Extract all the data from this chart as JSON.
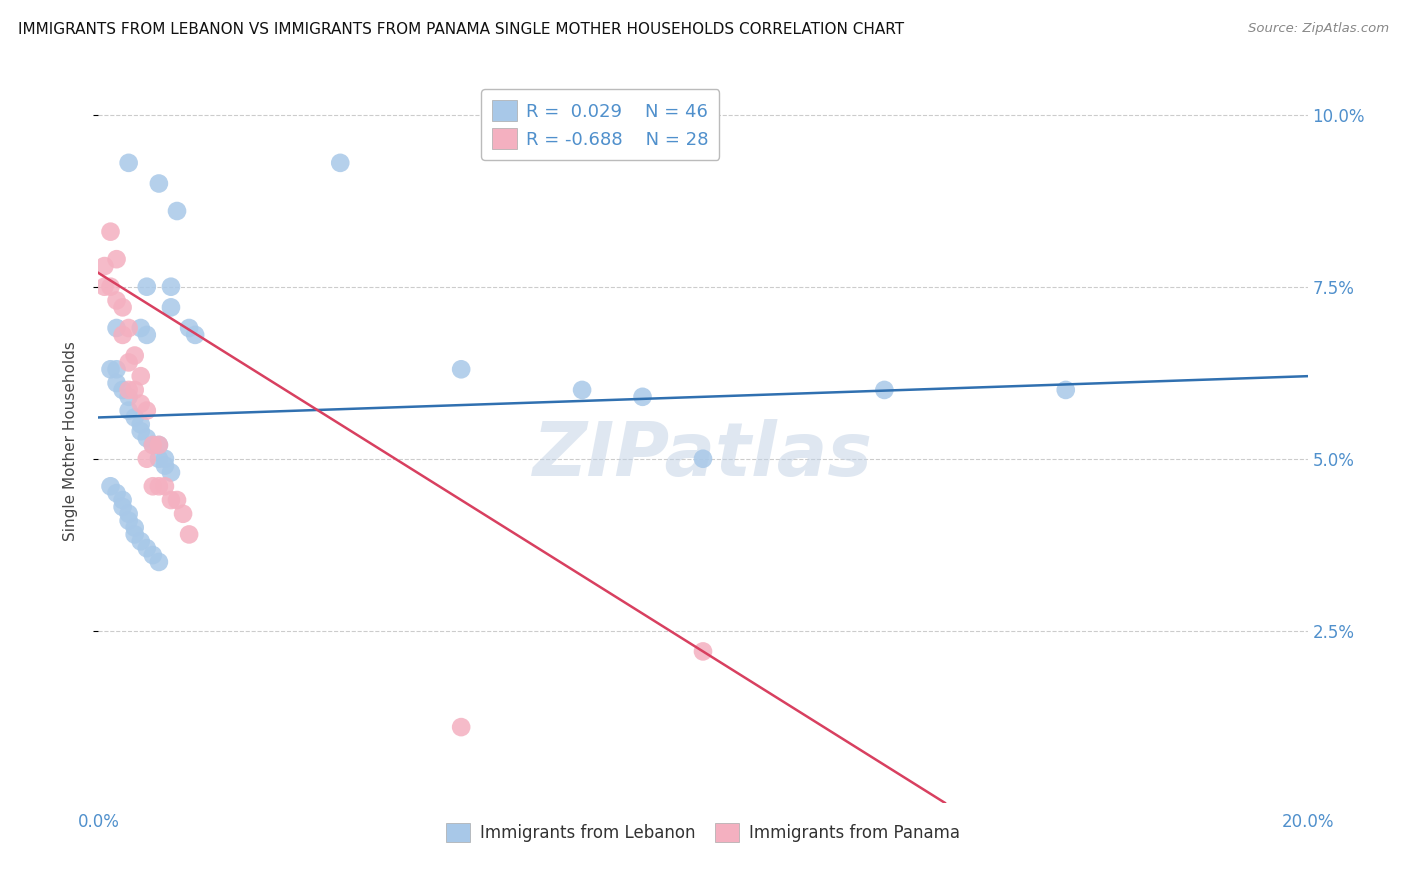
{
  "title": "IMMIGRANTS FROM LEBANON VS IMMIGRANTS FROM PANAMA SINGLE MOTHER HOUSEHOLDS CORRELATION CHART",
  "source": "Source: ZipAtlas.com",
  "ylabel": "Single Mother Households",
  "xlim": [
    0.0,
    0.2
  ],
  "ylim": [
    0.0,
    0.105
  ],
  "yticks": [
    0.025,
    0.05,
    0.075,
    0.1
  ],
  "ytick_labels": [
    "2.5%",
    "5.0%",
    "7.5%",
    "10.0%"
  ],
  "xticks": [
    0.0,
    0.05,
    0.1,
    0.15,
    0.2
  ],
  "xtick_labels": [
    "0.0%",
    "",
    "",
    "",
    "20.0%"
  ],
  "lebanon_R": "0.029",
  "lebanon_N": "46",
  "panama_R": "-0.688",
  "panama_N": "28",
  "lebanon_color": "#a8c8e8",
  "panama_color": "#f4b0c0",
  "lebanon_line_color": "#3070b0",
  "panama_line_color": "#d84060",
  "watermark": "ZIPatlas",
  "lebanon_x": [
    0.005,
    0.01,
    0.013,
    0.012,
    0.04,
    0.008,
    0.012,
    0.003,
    0.007,
    0.008,
    0.015,
    0.016,
    0.002,
    0.003,
    0.003,
    0.004,
    0.005,
    0.005,
    0.006,
    0.007,
    0.007,
    0.008,
    0.009,
    0.01,
    0.01,
    0.011,
    0.011,
    0.012,
    0.002,
    0.003,
    0.004,
    0.004,
    0.005,
    0.005,
    0.006,
    0.006,
    0.007,
    0.008,
    0.009,
    0.01,
    0.06,
    0.08,
    0.09,
    0.1,
    0.13,
    0.16
  ],
  "lebanon_y": [
    0.093,
    0.09,
    0.086,
    0.075,
    0.093,
    0.075,
    0.072,
    0.069,
    0.069,
    0.068,
    0.069,
    0.068,
    0.063,
    0.063,
    0.061,
    0.06,
    0.059,
    0.057,
    0.056,
    0.055,
    0.054,
    0.053,
    0.052,
    0.052,
    0.05,
    0.05,
    0.049,
    0.048,
    0.046,
    0.045,
    0.044,
    0.043,
    0.042,
    0.041,
    0.04,
    0.039,
    0.038,
    0.037,
    0.036,
    0.035,
    0.063,
    0.06,
    0.059,
    0.05,
    0.06,
    0.06
  ],
  "panama_x": [
    0.001,
    0.001,
    0.002,
    0.002,
    0.003,
    0.003,
    0.004,
    0.004,
    0.005,
    0.005,
    0.005,
    0.006,
    0.006,
    0.007,
    0.007,
    0.008,
    0.008,
    0.009,
    0.009,
    0.01,
    0.01,
    0.011,
    0.012,
    0.013,
    0.014,
    0.015,
    0.06,
    0.1
  ],
  "panama_y": [
    0.078,
    0.075,
    0.083,
    0.075,
    0.079,
    0.073,
    0.072,
    0.068,
    0.069,
    0.064,
    0.06,
    0.065,
    0.06,
    0.062,
    0.058,
    0.057,
    0.05,
    0.052,
    0.046,
    0.052,
    0.046,
    0.046,
    0.044,
    0.044,
    0.042,
    0.039,
    0.011,
    0.022
  ],
  "leb_line_x0": 0.0,
  "leb_line_y0": 0.056,
  "leb_line_x1": 0.2,
  "leb_line_y1": 0.062,
  "pan_line_x0": 0.0,
  "pan_line_y0": 0.077,
  "pan_line_x1": 0.14,
  "pan_line_y1": 0.0
}
